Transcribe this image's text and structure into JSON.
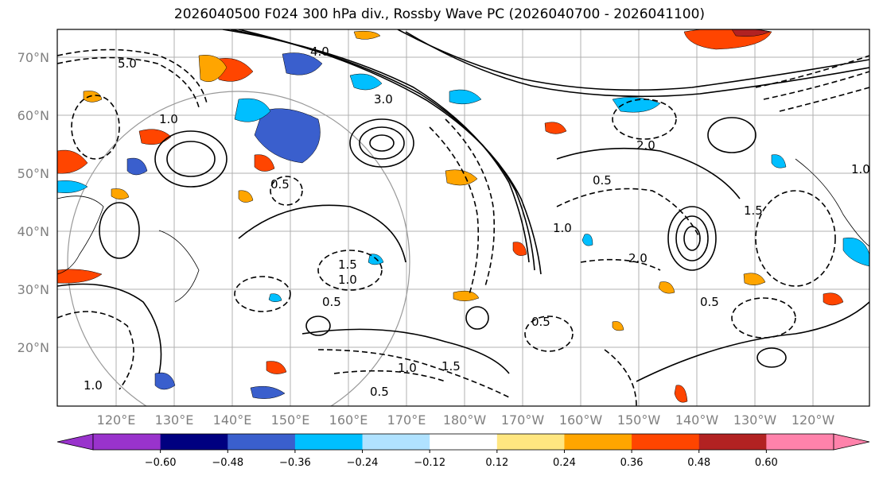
{
  "title": "2026040500 F024 300 hPa div., Rossby Wave PC (2026040700 - 2026041100)",
  "lat_labels": [
    "70°N",
    "60°N",
    "50°N",
    "40°N",
    "30°N",
    "20°N"
  ],
  "lon_labels": [
    "120°E",
    "130°E",
    "140°E",
    "150°E",
    "160°E",
    "170°E",
    "180°W",
    "170°W",
    "160°W",
    "150°W",
    "140°W",
    "130°W",
    "120°W"
  ],
  "colorbar": {
    "colors": [
      "#9933cc",
      "#000080",
      "#3a5fcd",
      "#00bfff",
      "#b0e2ff",
      "#ffffff",
      "#ffe680",
      "#ffa500",
      "#ff4500",
      "#b22222",
      "#ff82ab"
    ],
    "tick_labels": [
      "−0.60",
      "−0.48",
      "−0.36",
      "−0.24",
      "−0.12",
      "0.12",
      "0.24",
      "0.36",
      "0.48",
      "0.60"
    ]
  },
  "contour_labels": [
    "5.0",
    "1.0",
    "0.5",
    "1.5",
    "2.0",
    "3.0",
    "4.0",
    "1.0",
    "0.5",
    "1.5",
    "0.5",
    "1.0",
    "0.5",
    "2.0",
    "1.0",
    "0.5",
    "1.0",
    "1.5",
    "0.5",
    "1.0"
  ]
}
